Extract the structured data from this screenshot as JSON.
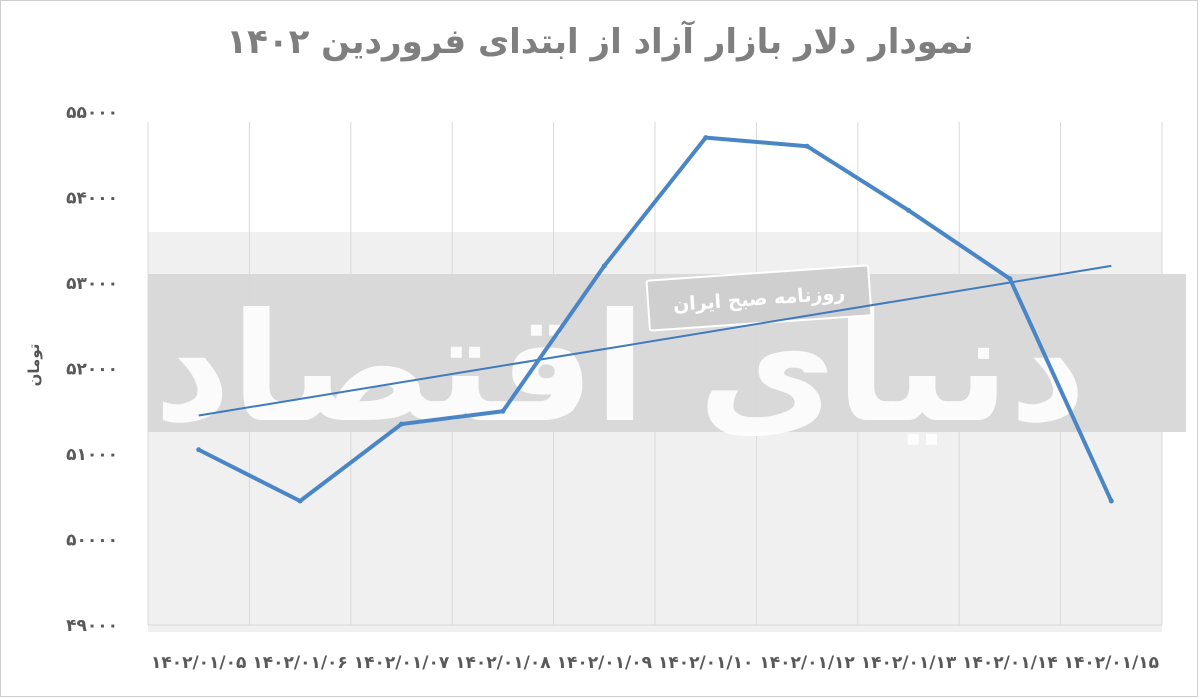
{
  "chart_data": {
    "type": "line",
    "title": "نمودار دلار بازار آزاد از ابتدای فروردین ۱۴۰۲",
    "xlabel": "",
    "ylabel": "تومان",
    "ylim": [
      49000,
      55000
    ],
    "yticks": [
      "۴۹۰۰۰",
      "۵۰۰۰۰",
      "۵۱۰۰۰",
      "۵۲۰۰۰",
      "۵۳۰۰۰",
      "۵۴۰۰۰",
      "۵۵۰۰۰"
    ],
    "ytick_values": [
      49000,
      50000,
      51000,
      52000,
      53000,
      54000,
      55000
    ],
    "categories": [
      "۱۴۰۲/۰۱/۰۵",
      "۱۴۰۲/۰۱/۰۶",
      "۱۴۰۲/۰۱/۰۷",
      "۱۴۰۲/۰۱/۰۸",
      "۱۴۰۲/۰۱/۰۹",
      "۱۴۰۲/۰۱/۱۰",
      "۱۴۰۲/۰۱/۱۲",
      "۱۴۰۲/۰۱/۱۳",
      "۱۴۰۲/۰۱/۱۴",
      "۱۴۰۲/۰۱/۱۵"
    ],
    "series": [
      {
        "values": [
          51050,
          50450,
          51350,
          51500,
          53200,
          54700,
          54600,
          53850,
          53050,
          50450
        ],
        "color": "#4a86c5"
      }
    ],
    "trendline": {
      "start": 51450,
      "end": 53200,
      "color": "#3f7bbd"
    },
    "grid": true,
    "legend": "none"
  },
  "watermark": {
    "main_text": "دنیای اقتصاد",
    "badge_text": "روزنامه صبح ایران",
    "band_color": "#d9d9d9"
  }
}
